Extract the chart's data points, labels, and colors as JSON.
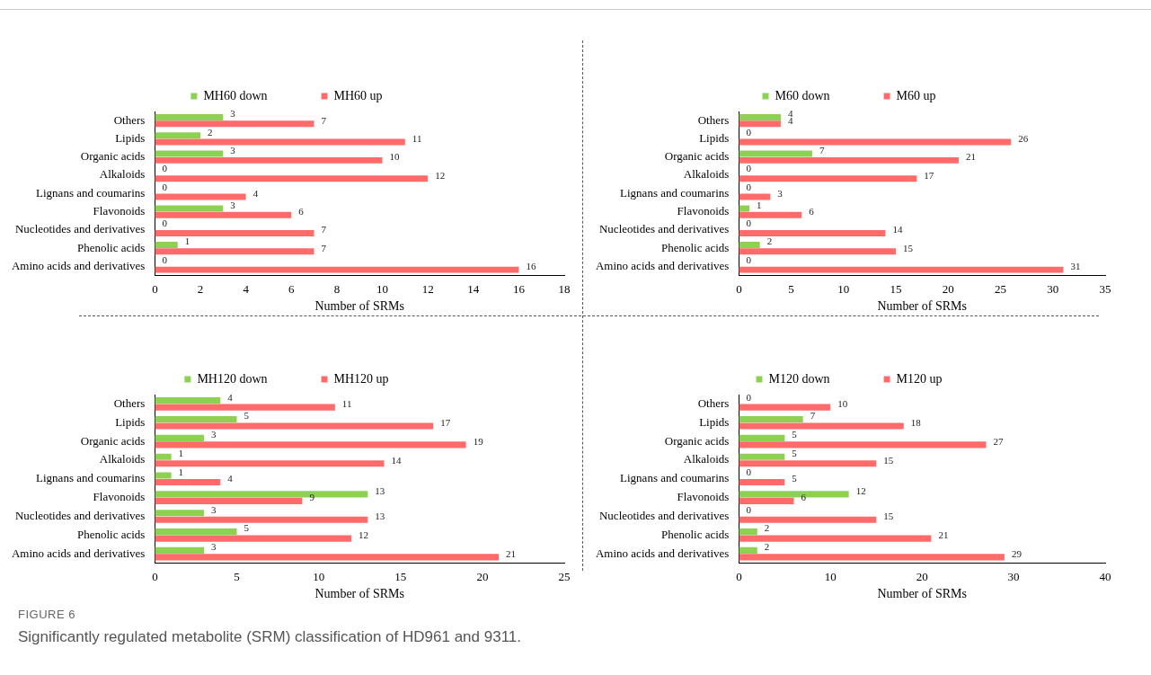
{
  "chart_data": [
    {
      "type": "bar",
      "orientation": "horizontal",
      "xlabel": "Number of SRMs",
      "categories": [
        "Others",
        "Lipids",
        "Organic acids",
        "Alkaloids",
        "Lignans and coumarins",
        "Flavonoids",
        "Nucleotides and derivatives",
        "Phenolic acids",
        "Amino acids and derivatives"
      ],
      "series": [
        {
          "name": "MH60 down",
          "color": "#8dd152",
          "values": [
            3,
            2,
            3,
            0,
            0,
            3,
            0,
            1,
            0
          ]
        },
        {
          "name": "MH60 up",
          "color": "#ff6b6b",
          "values": [
            7,
            11,
            10,
            12,
            4,
            6,
            7,
            7,
            16
          ]
        }
      ],
      "xlim": [
        0,
        18
      ],
      "xticks": [
        0,
        2,
        4,
        6,
        8,
        10,
        12,
        14,
        16,
        18
      ],
      "data_labels": true,
      "legend": "top",
      "grid": false
    },
    {
      "type": "bar",
      "orientation": "horizontal",
      "xlabel": "Number of SRMs",
      "categories": [
        "Others",
        "Lipids",
        "Organic acids",
        "Alkaloids",
        "Lignans and coumarins",
        "Flavonoids",
        "Nucleotides and derivatives",
        "Phenolic acids",
        "Amino acids and derivatives"
      ],
      "series": [
        {
          "name": "M60 down",
          "color": "#8dd152",
          "values": [
            4,
            0,
            7,
            0,
            0,
            1,
            0,
            2,
            0
          ]
        },
        {
          "name": "M60 up",
          "color": "#ff6b6b",
          "values": [
            4,
            26,
            21,
            17,
            3,
            6,
            14,
            15,
            31
          ]
        }
      ],
      "xlim": [
        0,
        35
      ],
      "xticks": [
        0,
        5,
        10,
        15,
        20,
        25,
        30,
        35
      ],
      "data_labels": true,
      "legend": "top",
      "grid": false
    },
    {
      "type": "bar",
      "orientation": "horizontal",
      "xlabel": "Number of SRMs",
      "categories": [
        "Others",
        "Lipids",
        "Organic acids",
        "Alkaloids",
        "Lignans and coumarins",
        "Flavonoids",
        "Nucleotides and derivatives",
        "Phenolic acids",
        "Amino acids and derivatives"
      ],
      "series": [
        {
          "name": "MH120 down",
          "color": "#8dd152",
          "values": [
            4,
            5,
            3,
            1,
            1,
            13,
            3,
            5,
            3
          ]
        },
        {
          "name": "MH120 up",
          "color": "#ff6b6b",
          "values": [
            11,
            17,
            19,
            14,
            4,
            9,
            13,
            12,
            21
          ]
        }
      ],
      "xlim": [
        0,
        25
      ],
      "xticks": [
        0,
        5,
        10,
        15,
        20,
        25
      ],
      "data_labels": true,
      "legend": "top",
      "grid": false
    },
    {
      "type": "bar",
      "orientation": "horizontal",
      "xlabel": "Number of SRMs",
      "categories": [
        "Others",
        "Lipids",
        "Organic acids",
        "Alkaloids",
        "Lignans and coumarins",
        "Flavonoids",
        "Nucleotides and derivatives",
        "Phenolic acids",
        "Amino acids and derivatives"
      ],
      "series": [
        {
          "name": "M120 down",
          "color": "#8dd152",
          "values": [
            0,
            7,
            5,
            5,
            0,
            12,
            0,
            2,
            2
          ]
        },
        {
          "name": "M120 up",
          "color": "#ff6b6b",
          "values": [
            10,
            18,
            27,
            15,
            5,
            6,
            15,
            21,
            29
          ]
        }
      ],
      "xlim": [
        0,
        40
      ],
      "xticks": [
        0,
        10,
        20,
        30,
        40
      ],
      "data_labels": true,
      "legend": "top",
      "grid": false,
      "annotations": [
        "FIGURE 6",
        "Significantly regulated metabolite (SRM) classification of HD961 and 9311."
      ]
    }
  ]
}
